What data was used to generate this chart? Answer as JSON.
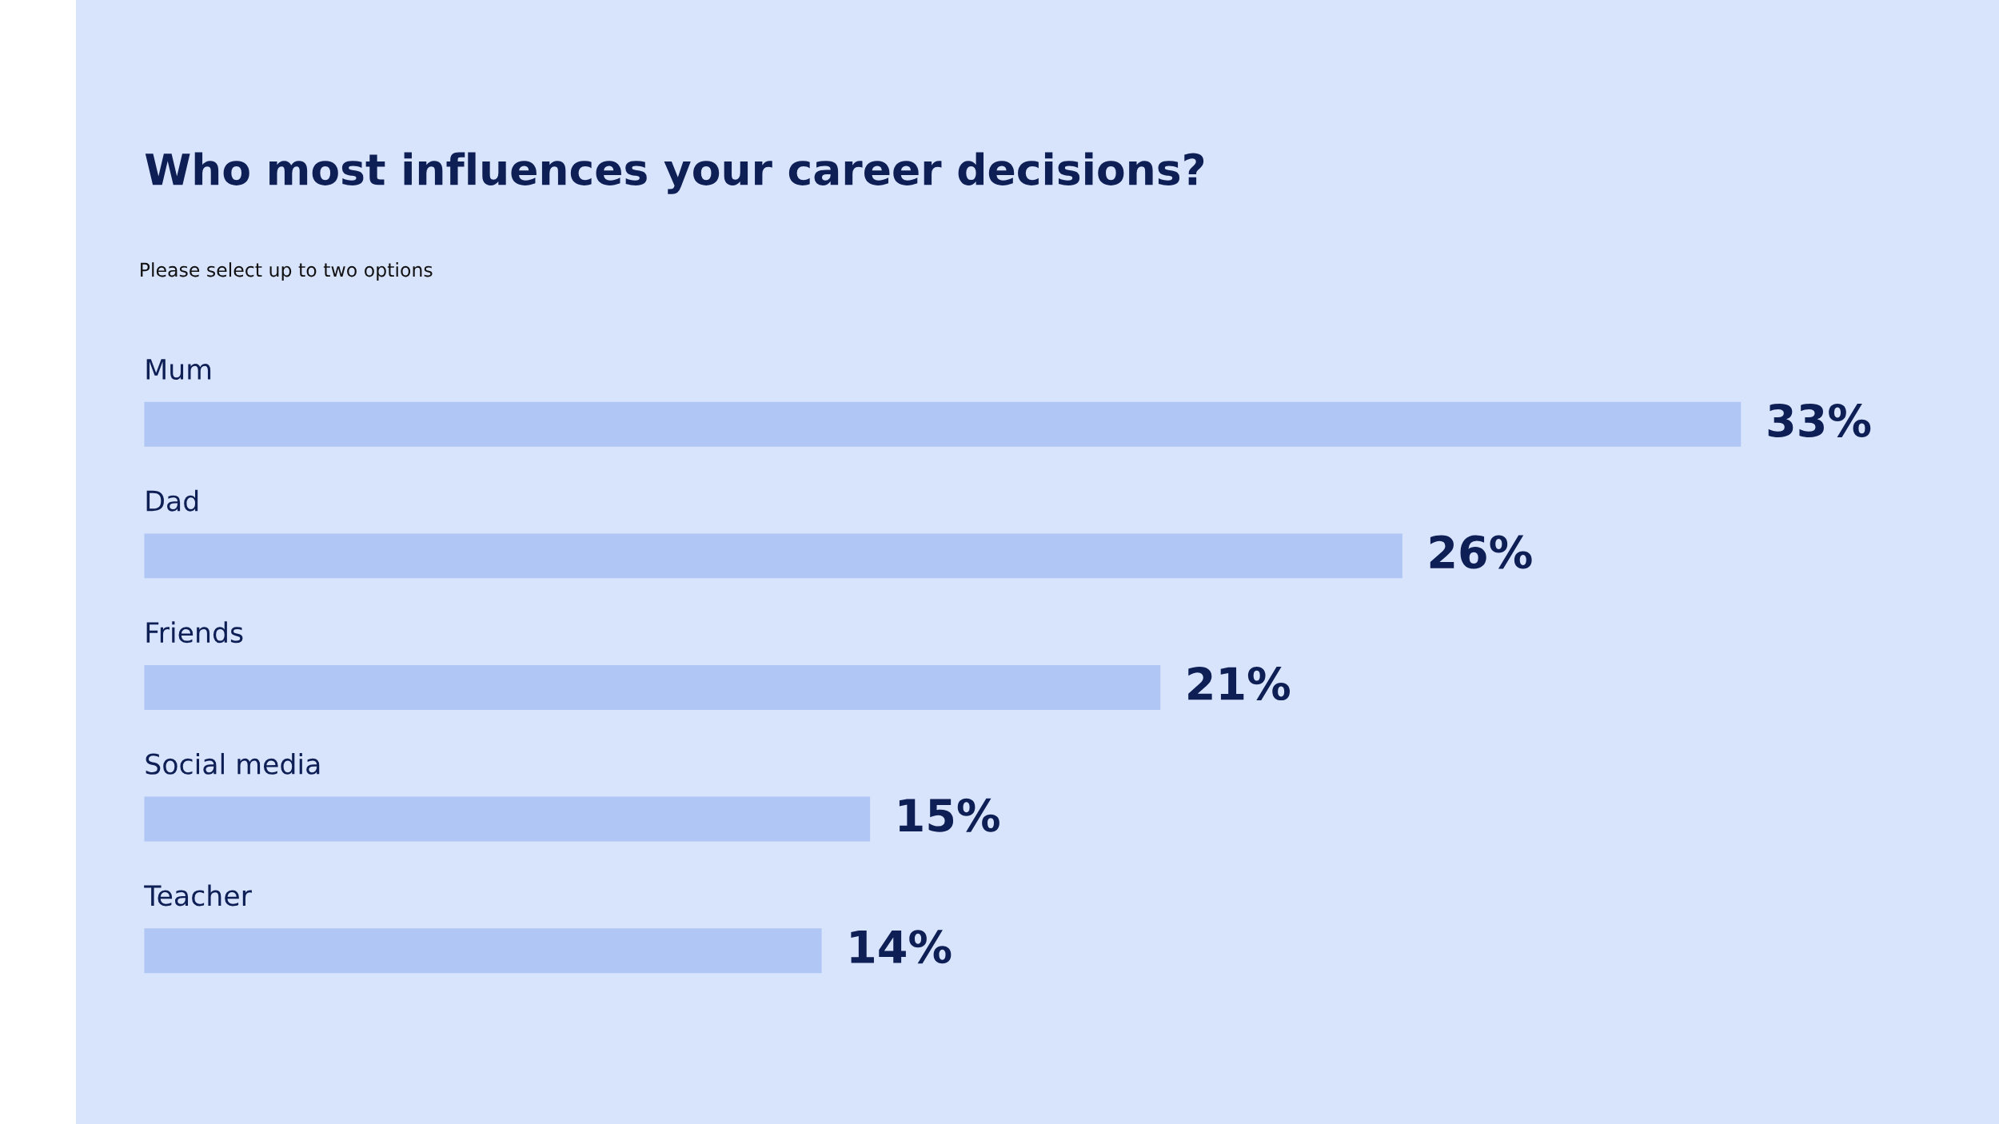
{
  "chart_data": {
    "type": "bar",
    "orientation": "horizontal",
    "title": "Who most influences your career decisions?",
    "subtitle": "Please select up to two options",
    "categories": [
      "Mum",
      "Dad",
      "Friends",
      "Social media",
      "Teacher"
    ],
    "values": [
      33,
      26,
      21,
      15,
      14
    ],
    "value_labels": [
      "33%",
      "26%",
      "21%",
      "15%",
      "14%"
    ],
    "color": "#b0c6f5"
  }
}
